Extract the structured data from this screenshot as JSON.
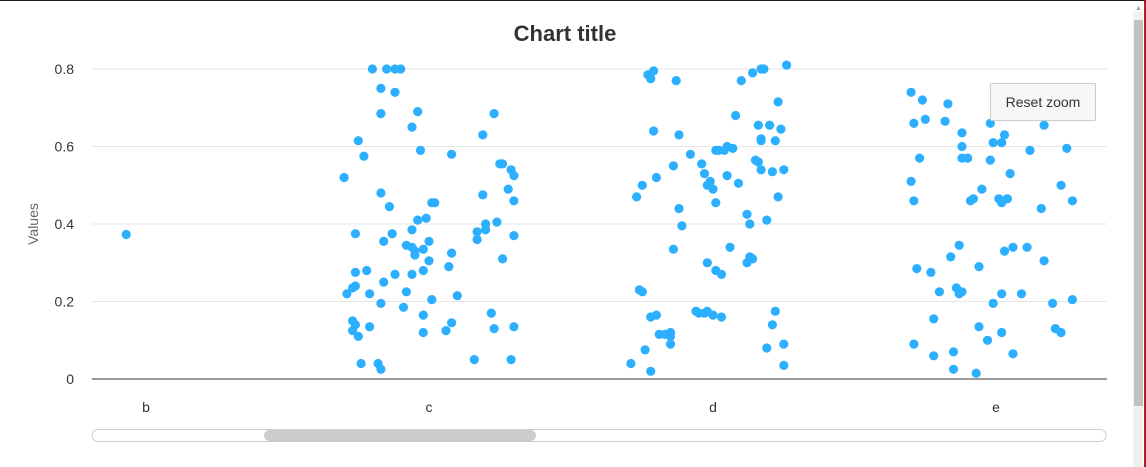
{
  "chart_data": {
    "type": "scatter",
    "title": "Chart title",
    "ylabel": "Values",
    "xlabel": "",
    "categories": [
      "b",
      "c",
      "d",
      "e"
    ],
    "ylim": [
      0,
      0.8
    ],
    "yticks": [
      "0",
      "0.2",
      "0.4",
      "0.6",
      "0.8"
    ],
    "grid": true,
    "legend": "none",
    "marker_color": "#2caffe",
    "series": [
      {
        "category": "b",
        "points": [
          [
            -0.07,
            0.373
          ]
        ]
      },
      {
        "category": "c",
        "points": [
          [
            -0.3,
            0.52
          ],
          [
            -0.29,
            0.22
          ],
          [
            -0.27,
            0.235
          ],
          [
            -0.27,
            0.15
          ],
          [
            -0.27,
            0.125
          ],
          [
            -0.26,
            0.375
          ],
          [
            -0.26,
            0.275
          ],
          [
            -0.26,
            0.24
          ],
          [
            -0.26,
            0.14
          ],
          [
            -0.25,
            0.615
          ],
          [
            -0.25,
            0.11
          ],
          [
            -0.24,
            0.04
          ],
          [
            -0.23,
            0.575
          ],
          [
            -0.22,
            0.28
          ],
          [
            -0.21,
            0.135
          ],
          [
            -0.21,
            0.22
          ],
          [
            -0.2,
            0.8
          ],
          [
            -0.18,
            0.04
          ],
          [
            -0.17,
            0.75
          ],
          [
            -0.17,
            0.685
          ],
          [
            -0.17,
            0.48
          ],
          [
            -0.17,
            0.195
          ],
          [
            -0.17,
            0.025
          ],
          [
            -0.16,
            0.25
          ],
          [
            -0.16,
            0.355
          ],
          [
            -0.15,
            0.8
          ],
          [
            -0.14,
            0.445
          ],
          [
            -0.13,
            0.375
          ],
          [
            -0.12,
            0.8
          ],
          [
            -0.12,
            0.74
          ],
          [
            -0.12,
            0.27
          ],
          [
            -0.1,
            0.8
          ],
          [
            -0.09,
            0.185
          ],
          [
            -0.08,
            0.345
          ],
          [
            -0.08,
            0.225
          ],
          [
            -0.06,
            0.65
          ],
          [
            -0.06,
            0.385
          ],
          [
            -0.06,
            0.34
          ],
          [
            -0.06,
            0.27
          ],
          [
            -0.05,
            0.33
          ],
          [
            -0.05,
            0.32
          ],
          [
            -0.04,
            0.69
          ],
          [
            -0.04,
            0.41
          ],
          [
            -0.03,
            0.59
          ],
          [
            -0.02,
            0.335
          ],
          [
            -0.02,
            0.28
          ],
          [
            -0.02,
            0.12
          ],
          [
            -0.02,
            0.165
          ],
          [
            -0.01,
            0.415
          ],
          [
            0.0,
            0.355
          ],
          [
            0.0,
            0.305
          ],
          [
            0.01,
            0.455
          ],
          [
            0.01,
            0.205
          ],
          [
            0.02,
            0.455
          ],
          [
            0.06,
            0.125
          ],
          [
            0.07,
            0.29
          ],
          [
            0.08,
            0.325
          ],
          [
            0.08,
            0.145
          ],
          [
            0.08,
            0.58
          ],
          [
            0.1,
            0.215
          ],
          [
            0.16,
            0.05
          ],
          [
            0.17,
            0.38
          ],
          [
            0.17,
            0.36
          ],
          [
            0.19,
            0.63
          ],
          [
            0.19,
            0.475
          ],
          [
            0.2,
            0.385
          ],
          [
            0.2,
            0.4
          ],
          [
            0.22,
            0.17
          ],
          [
            0.23,
            0.685
          ],
          [
            0.23,
            0.13
          ],
          [
            0.24,
            0.405
          ],
          [
            0.25,
            0.555
          ],
          [
            0.26,
            0.31
          ],
          [
            0.26,
            0.555
          ],
          [
            0.28,
            0.49
          ],
          [
            0.29,
            0.54
          ],
          [
            0.29,
            0.05
          ],
          [
            0.3,
            0.525
          ],
          [
            0.3,
            0.46
          ],
          [
            0.3,
            0.135
          ],
          [
            0.3,
            0.37
          ]
        ]
      },
      {
        "category": "d",
        "points": [
          [
            -0.29,
            0.04
          ],
          [
            -0.27,
            0.47
          ],
          [
            -0.26,
            0.23
          ],
          [
            -0.25,
            0.5
          ],
          [
            -0.25,
            0.225
          ],
          [
            -0.24,
            0.075
          ],
          [
            -0.23,
            0.785
          ],
          [
            -0.22,
            0.775
          ],
          [
            -0.22,
            0.16
          ],
          [
            -0.22,
            0.02
          ],
          [
            -0.21,
            0.64
          ],
          [
            -0.21,
            0.795
          ],
          [
            -0.2,
            0.165
          ],
          [
            -0.2,
            0.52
          ],
          [
            -0.19,
            0.115
          ],
          [
            -0.17,
            0.115
          ],
          [
            -0.15,
            0.11
          ],
          [
            -0.15,
            0.12
          ],
          [
            -0.15,
            0.09
          ],
          [
            -0.14,
            0.335
          ],
          [
            -0.14,
            0.55
          ],
          [
            -0.13,
            0.77
          ],
          [
            -0.12,
            0.44
          ],
          [
            -0.12,
            0.63
          ],
          [
            -0.11,
            0.395
          ],
          [
            -0.08,
            0.58
          ],
          [
            -0.06,
            0.175
          ],
          [
            -0.05,
            0.17
          ],
          [
            -0.04,
            0.555
          ],
          [
            -0.03,
            0.17
          ],
          [
            -0.03,
            0.53
          ],
          [
            -0.02,
            0.5
          ],
          [
            -0.02,
            0.3
          ],
          [
            -0.02,
            0.175
          ],
          [
            -0.01,
            0.51
          ],
          [
            0.0,
            0.49
          ],
          [
            0.0,
            0.165
          ],
          [
            0.01,
            0.455
          ],
          [
            0.01,
            0.59
          ],
          [
            0.01,
            0.28
          ],
          [
            0.02,
            0.59
          ],
          [
            0.03,
            0.16
          ],
          [
            0.03,
            0.27
          ],
          [
            0.04,
            0.59
          ],
          [
            0.05,
            0.525
          ],
          [
            0.05,
            0.6
          ],
          [
            0.06,
            0.34
          ],
          [
            0.07,
            0.595
          ],
          [
            0.08,
            0.68
          ],
          [
            0.09,
            0.505
          ],
          [
            0.1,
            0.77
          ],
          [
            0.12,
            0.3
          ],
          [
            0.12,
            0.425
          ],
          [
            0.13,
            0.315
          ],
          [
            0.13,
            0.4
          ],
          [
            0.14,
            0.79
          ],
          [
            0.14,
            0.31
          ],
          [
            0.15,
            0.565
          ],
          [
            0.16,
            0.655
          ],
          [
            0.16,
            0.56
          ],
          [
            0.17,
            0.8
          ],
          [
            0.17,
            0.615
          ],
          [
            0.17,
            0.62
          ],
          [
            0.17,
            0.54
          ],
          [
            0.18,
            0.8
          ],
          [
            0.19,
            0.08
          ],
          [
            0.19,
            0.41
          ],
          [
            0.2,
            0.655
          ],
          [
            0.21,
            0.14
          ],
          [
            0.21,
            0.535
          ],
          [
            0.22,
            0.175
          ],
          [
            0.22,
            0.615
          ],
          [
            0.23,
            0.47
          ],
          [
            0.23,
            0.715
          ],
          [
            0.24,
            0.645
          ],
          [
            0.25,
            0.035
          ],
          [
            0.25,
            0.09
          ],
          [
            0.25,
            0.54
          ],
          [
            0.26,
            0.81
          ]
        ]
      },
      {
        "category": "e",
        "points": [
          [
            -0.3,
            0.74
          ],
          [
            -0.3,
            0.51
          ],
          [
            -0.29,
            0.66
          ],
          [
            -0.29,
            0.46
          ],
          [
            -0.29,
            0.09
          ],
          [
            -0.28,
            0.285
          ],
          [
            -0.27,
            0.57
          ],
          [
            -0.26,
            0.72
          ],
          [
            -0.25,
            0.67
          ],
          [
            -0.23,
            0.275
          ],
          [
            -0.22,
            0.06
          ],
          [
            -0.22,
            0.155
          ],
          [
            -0.2,
            0.225
          ],
          [
            -0.18,
            0.665
          ],
          [
            -0.17,
            0.71
          ],
          [
            -0.16,
            0.315
          ],
          [
            -0.15,
            0.07
          ],
          [
            -0.15,
            0.025
          ],
          [
            -0.14,
            0.235
          ],
          [
            -0.13,
            0.22
          ],
          [
            -0.13,
            0.345
          ],
          [
            -0.12,
            0.57
          ],
          [
            -0.12,
            0.635
          ],
          [
            -0.12,
            0.6
          ],
          [
            -0.12,
            0.225
          ],
          [
            -0.1,
            0.57
          ],
          [
            -0.09,
            0.46
          ],
          [
            -0.08,
            0.465
          ],
          [
            -0.07,
            0.015
          ],
          [
            -0.06,
            0.135
          ],
          [
            -0.06,
            0.29
          ],
          [
            -0.05,
            0.49
          ],
          [
            -0.03,
            0.1
          ],
          [
            -0.02,
            0.66
          ],
          [
            -0.02,
            0.565
          ],
          [
            -0.01,
            0.195
          ],
          [
            -0.01,
            0.61
          ],
          [
            0.01,
            0.465
          ],
          [
            0.02,
            0.455
          ],
          [
            0.02,
            0.61
          ],
          [
            0.02,
            0.22
          ],
          [
            0.02,
            0.12
          ],
          [
            0.03,
            0.33
          ],
          [
            0.03,
            0.63
          ],
          [
            0.04,
            0.465
          ],
          [
            0.04,
            0.465
          ],
          [
            0.05,
            0.53
          ],
          [
            0.06,
            0.065
          ],
          [
            0.06,
            0.34
          ],
          [
            0.09,
            0.22
          ],
          [
            0.11,
            0.34
          ],
          [
            0.12,
            0.59
          ],
          [
            0.16,
            0.44
          ],
          [
            0.17,
            0.655
          ],
          [
            0.17,
            0.305
          ],
          [
            0.2,
            0.195
          ],
          [
            0.21,
            0.13
          ],
          [
            0.23,
            0.12
          ],
          [
            0.23,
            0.5
          ],
          [
            0.25,
            0.595
          ],
          [
            0.27,
            0.205
          ],
          [
            0.27,
            0.46
          ]
        ]
      }
    ]
  },
  "controls": {
    "reset_zoom_label": "Reset zoom"
  }
}
